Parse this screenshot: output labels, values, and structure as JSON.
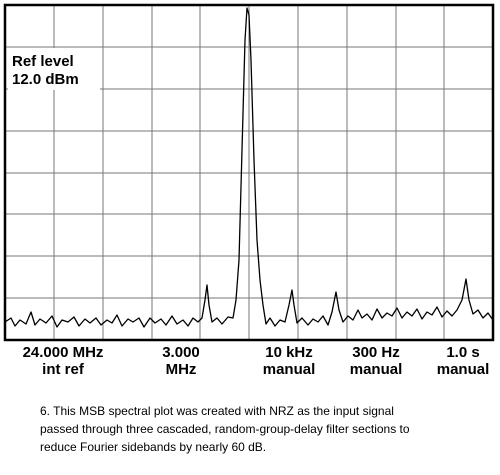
{
  "screen": {
    "ref_level": [
      "Ref level",
      "12.0 dBm"
    ],
    "settings": [
      [
        "24.000 MHz",
        "int ref"
      ],
      [
        "3.000",
        "MHz"
      ],
      [
        "10 kHz",
        "manual"
      ],
      [
        "300 Hz",
        "manual"
      ],
      [
        "1.0 s",
        "manual"
      ]
    ]
  },
  "caption": [
    "6. This MSB spectral plot was created with NRZ as the input signal",
    "passed through three cascaded, random-group-delay filter sections to",
    "reduce Fourier sidebands by nearly 60 dB."
  ]
}
